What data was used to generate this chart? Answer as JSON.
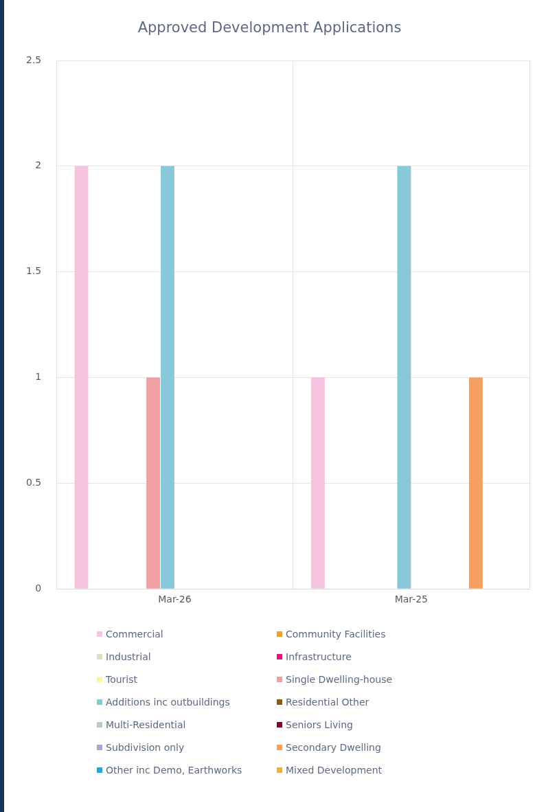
{
  "chart_data": {
    "type": "bar",
    "title": "Approved Development Applications",
    "categories": [
      "Mar-26",
      "Mar-25"
    ],
    "series": [
      {
        "name": "Commercial",
        "color": "#f7c4e0",
        "values": [
          2,
          1
        ]
      },
      {
        "name": "Community Facilities",
        "color": "#f0a030",
        "values": [
          null,
          null
        ]
      },
      {
        "name": "Industrial",
        "color": "#d6e2c0",
        "values": [
          null,
          null
        ]
      },
      {
        "name": "Infrastructure",
        "color": "#e8147e",
        "values": [
          null,
          null
        ]
      },
      {
        "name": "Tourist",
        "color": "#f8f8a0",
        "values": [
          null,
          null
        ]
      },
      {
        "name": "Single Dwelling-house",
        "color": "#f0a0a0",
        "values": [
          1,
          null
        ]
      },
      {
        "name": "Additions inc outbuildings",
        "color": "#88c8d8",
        "values": [
          2,
          2
        ]
      },
      {
        "name": "Residential Other",
        "color": "#8a5a10",
        "values": [
          null,
          null
        ]
      },
      {
        "name": "Multi-Residential",
        "color": "#b8ccc8",
        "values": [
          null,
          null
        ]
      },
      {
        "name": "Seniors Living",
        "color": "#7a0a3a",
        "values": [
          null,
          null
        ]
      },
      {
        "name": "Subdivision only",
        "color": "#b0a0d8",
        "values": [
          null,
          null
        ]
      },
      {
        "name": "Secondary Dwelling",
        "color": "#f5a060",
        "values": [
          null,
          1
        ]
      },
      {
        "name": "Other inc Demo, Earthworks",
        "color": "#1aa8e0",
        "values": [
          null,
          null
        ]
      },
      {
        "name": "Mixed Development",
        "color": "#f0b040",
        "values": [
          null,
          null
        ]
      }
    ],
    "ylim": [
      0,
      2.5
    ],
    "yticks": [
      0,
      0.5,
      1,
      1.5,
      2,
      2.5
    ],
    "grid": true,
    "legend": "bottom"
  }
}
